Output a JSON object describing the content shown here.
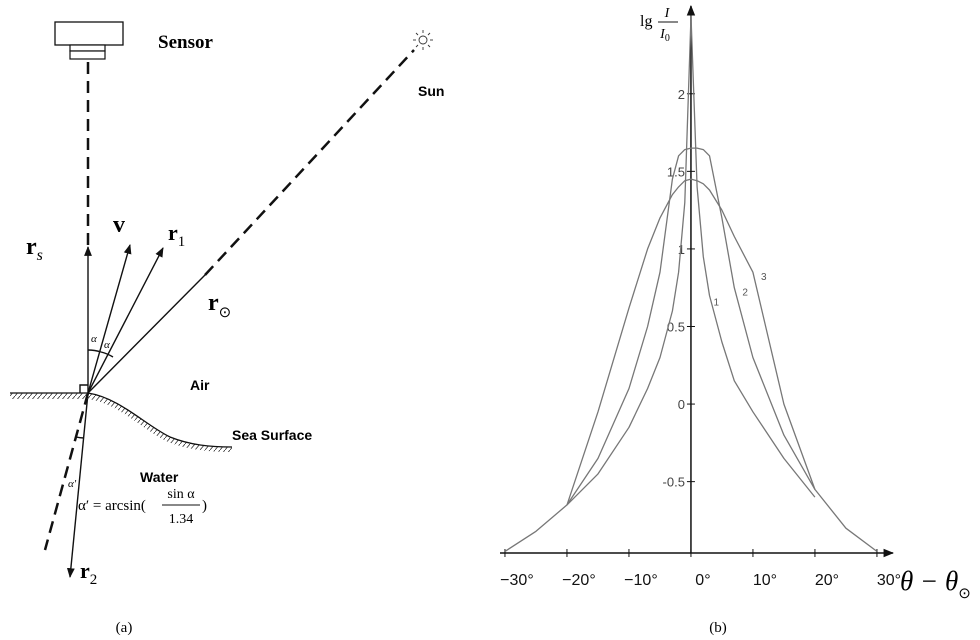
{
  "panel_a": {
    "sensor": "Sensor",
    "sun": "Sun",
    "r_s": {
      "main": "r",
      "sub": "s"
    },
    "v": "v",
    "r_1": {
      "main": "r",
      "sub": "1"
    },
    "r_sun": {
      "main": "r",
      "sub": "⊙"
    },
    "alpha_1": "α",
    "alpha_2": "α",
    "air": "Air",
    "sea_surface": "Sea Surface",
    "water": "Water",
    "alpha_prime": "α′",
    "formula": {
      "lhs": "α′ = arcsin(",
      "numerator": "sin α",
      "denominator": "1.34",
      "rhs": ")"
    },
    "r_2": {
      "main": "r",
      "sub": "2"
    }
  },
  "chart_data": {
    "type": "line",
    "y_label": {
      "prefix": "lg",
      "numerator": "I",
      "denominator": "I",
      "denominator_sub": "0"
    },
    "x_label": {
      "main": "θ − θ",
      "sub": "⊙"
    },
    "x": [
      -30,
      -25,
      -20,
      -15,
      -10,
      -7,
      -5,
      -3,
      -2,
      -1,
      0,
      1,
      2,
      3,
      5,
      7,
      10,
      15,
      20,
      25,
      30
    ],
    "series": [
      {
        "name": "1",
        "color": "#777777",
        "values": [
          null,
          null,
          -0.65,
          -0.45,
          -0.15,
          0.1,
          0.3,
          0.6,
          0.85,
          1.3,
          2.5,
          1.4,
          0.95,
          0.7,
          0.4,
          0.15,
          -0.05,
          -0.35,
          -0.6,
          null,
          null
        ]
      },
      {
        "name": "2",
        "color": "#777777",
        "values": [
          null,
          null,
          -0.65,
          -0.35,
          0.1,
          0.5,
          0.85,
          1.45,
          1.6,
          1.64,
          1.65,
          1.65,
          1.64,
          1.6,
          1.2,
          0.75,
          0.3,
          -0.2,
          -0.55,
          null,
          null
        ]
      },
      {
        "name": "3",
        "color": "#777777",
        "values": [
          -0.95,
          -0.82,
          -0.65,
          -0.05,
          0.62,
          1.0,
          1.2,
          1.35,
          1.4,
          1.44,
          1.45,
          1.44,
          1.42,
          1.38,
          1.25,
          1.08,
          0.85,
          0.0,
          -0.55,
          -0.8,
          -0.95
        ]
      }
    ],
    "xlim": [
      -30.8,
      31.3
    ],
    "ylim": [
      -0.96,
      2.54
    ],
    "xticks": [
      {
        "value": -30,
        "label": "−30°"
      },
      {
        "value": -20,
        "label": "−20°"
      },
      {
        "value": -10,
        "label": "−10°"
      },
      {
        "value": 0,
        "label": "0°"
      },
      {
        "value": 10,
        "label": "10°"
      },
      {
        "value": 20,
        "label": "20°"
      },
      {
        "value": 30,
        "label": "30°"
      }
    ],
    "yticks": [
      -0.5,
      0,
      0.5,
      1,
      1.5,
      2
    ]
  },
  "captions": {
    "a": "(a)",
    "b": "(b)"
  }
}
